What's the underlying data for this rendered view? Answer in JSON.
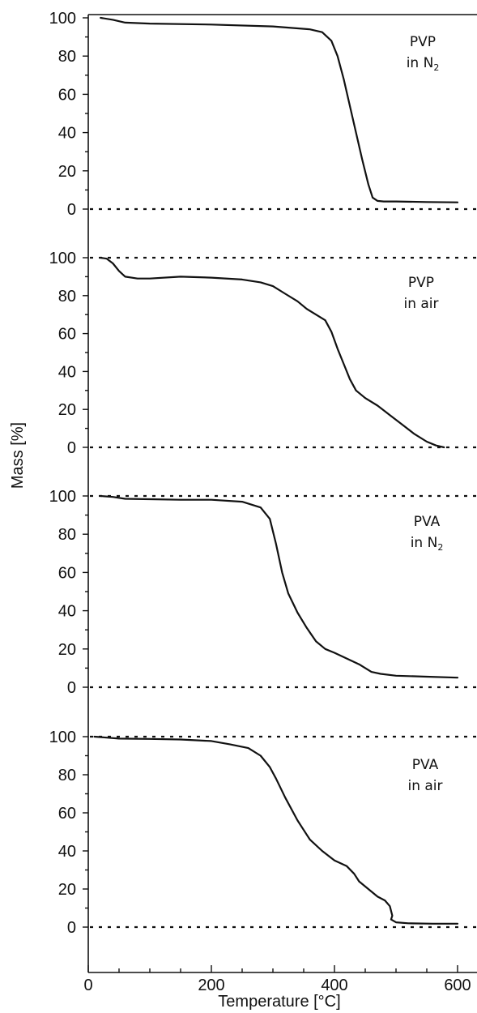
{
  "chart_data": {
    "type": "line",
    "xlabel": "Temperature [°C]",
    "ylabel": "Mass [%]",
    "xlim": [
      0,
      630
    ],
    "xticks": [
      "0",
      "200",
      "400",
      "600"
    ],
    "yticks": [
      "0",
      "20",
      "40",
      "60",
      "80",
      "100"
    ],
    "ylim": [
      0,
      100
    ],
    "dashed_reference_lines": [
      0,
      100
    ],
    "panels": [
      {
        "label_line1": "PVP",
        "label_line2": "in N",
        "label_sub": "2",
        "x": [
          20,
          40,
          60,
          100,
          200,
          300,
          360,
          380,
          395,
          405,
          415,
          425,
          435,
          445,
          455,
          462,
          470,
          480,
          500,
          550,
          600
        ],
        "values": [
          100,
          99,
          97.5,
          97,
          96.5,
          95.5,
          94,
          92.5,
          88,
          80,
          68,
          54,
          40,
          26,
          13,
          6,
          4.3,
          4,
          4,
          3.7,
          3.5
        ]
      },
      {
        "label_line1": "PVP",
        "label_line2": "in air",
        "label_sub": "",
        "x": [
          20,
          30,
          40,
          50,
          60,
          80,
          100,
          150,
          200,
          250,
          280,
          300,
          320,
          340,
          355,
          370,
          385,
          395,
          405,
          415,
          425,
          435,
          450,
          470,
          490,
          510,
          530,
          550,
          565,
          578
        ],
        "values": [
          100,
          99.5,
          97,
          93,
          90,
          89,
          89,
          90,
          89.5,
          88.5,
          87,
          85,
          81,
          77,
          73,
          70,
          67,
          61,
          52,
          44,
          36,
          30,
          26,
          22,
          17,
          12,
          7,
          3,
          1,
          0
        ]
      },
      {
        "label_line1": "PVA",
        "label_line2": "in N",
        "label_sub": "2",
        "x": [
          20,
          40,
          60,
          100,
          150,
          180,
          200,
          250,
          280,
          295,
          305,
          315,
          325,
          340,
          355,
          370,
          385,
          400,
          420,
          440,
          460,
          475,
          500,
          550,
          600
        ],
        "values": [
          100,
          99.5,
          98.5,
          98.3,
          98,
          98,
          98,
          97,
          94,
          88,
          75,
          60,
          49,
          39,
          31,
          24,
          20,
          18,
          15,
          12,
          8,
          7,
          6,
          5.5,
          5
        ]
      },
      {
        "label_line1": "PVA",
        "label_line2": "in air",
        "label_sub": "",
        "x": [
          10,
          30,
          50,
          100,
          150,
          200,
          230,
          260,
          280,
          295,
          305,
          320,
          340,
          360,
          380,
          400,
          420,
          432,
          440,
          455,
          470,
          482,
          490,
          494,
          492,
          500,
          520,
          560,
          600
        ],
        "values": [
          100,
          99.5,
          99,
          98.8,
          98.5,
          97.7,
          96,
          94,
          90,
          84,
          78,
          68,
          56,
          46,
          40,
          35,
          32,
          28,
          24,
          20,
          16,
          14,
          11,
          6,
          4,
          2.5,
          2,
          1.8,
          1.8
        ]
      }
    ]
  }
}
